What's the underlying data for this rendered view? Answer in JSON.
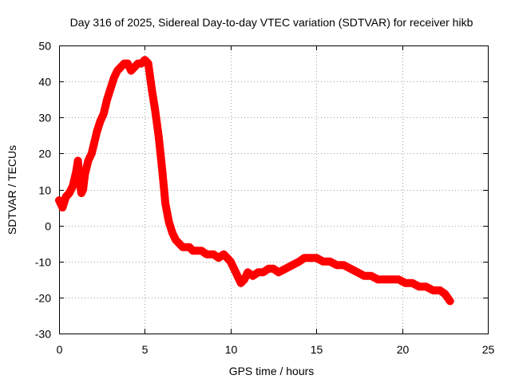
{
  "chart_data": {
    "type": "scatter",
    "title": "Day 316 of 2025, Sidereal Day-to-day VTEC variation (SDTVAR) for receiver hikb",
    "xlabel": "GPS time / hours",
    "ylabel": "SDTVAR / TECUs",
    "xlim": [
      0,
      25
    ],
    "ylim": [
      -30,
      50
    ],
    "x_ticks": [
      0,
      5,
      10,
      15,
      20,
      25
    ],
    "y_ticks": [
      -30,
      -20,
      -10,
      0,
      10,
      20,
      30,
      40,
      50
    ],
    "x_tick_labels": [
      "0",
      "5",
      "10",
      "15",
      "20",
      "25"
    ],
    "y_tick_labels": [
      "-30",
      "-20",
      "-10",
      "0",
      "10",
      "20",
      "30",
      "40",
      "50"
    ],
    "grid": true,
    "marker": "+",
    "color": "#ff0000",
    "series": [
      {
        "name": "SDTVAR",
        "x": [
          0.0,
          0.2,
          0.4,
          0.6,
          0.8,
          1.0,
          1.1,
          1.2,
          1.3,
          1.4,
          1.5,
          1.7,
          1.9,
          2.0,
          2.2,
          2.4,
          2.6,
          2.8,
          3.0,
          3.2,
          3.4,
          3.6,
          3.8,
          4.0,
          4.2,
          4.4,
          4.6,
          4.8,
          5.0,
          5.2,
          5.4,
          5.6,
          5.8,
          6.0,
          6.2,
          6.4,
          6.6,
          6.8,
          7.0,
          7.2,
          7.4,
          7.6,
          7.8,
          8.0,
          8.3,
          8.6,
          9.0,
          9.3,
          9.6,
          9.8,
          10.0,
          10.2,
          10.4,
          10.6,
          10.8,
          11.0,
          11.3,
          11.6,
          11.9,
          12.2,
          12.5,
          12.8,
          13.2,
          13.6,
          14.0,
          14.3,
          14.6,
          15.0,
          15.4,
          15.8,
          16.2,
          16.6,
          17.0,
          17.4,
          17.8,
          18.2,
          18.6,
          19.0,
          19.4,
          19.8,
          20.2,
          20.6,
          21.0,
          21.4,
          21.8,
          22.2,
          22.5,
          22.8
        ],
        "y": [
          7,
          5,
          8,
          9,
          11,
          15,
          18,
          12,
          9,
          10,
          14,
          18,
          20,
          22,
          26,
          29,
          31,
          35,
          38,
          41,
          43,
          44,
          45,
          45,
          43,
          44,
          45,
          45,
          46,
          45,
          38,
          32,
          25,
          16,
          6,
          1,
          -2,
          -4,
          -5,
          -6,
          -6,
          -6,
          -7,
          -7,
          -7,
          -8,
          -8,
          -9,
          -8,
          -9,
          -10,
          -12,
          -14,
          -16,
          -15,
          -13,
          -14,
          -13,
          -13,
          -12,
          -12,
          -13,
          -12,
          -11,
          -10,
          -9,
          -9,
          -9,
          -10,
          -10,
          -11,
          -11,
          -12,
          -13,
          -14,
          -14,
          -15,
          -15,
          -15,
          -15,
          -16,
          -16,
          -17,
          -17,
          -18,
          -18,
          -19,
          -21
        ]
      }
    ]
  }
}
